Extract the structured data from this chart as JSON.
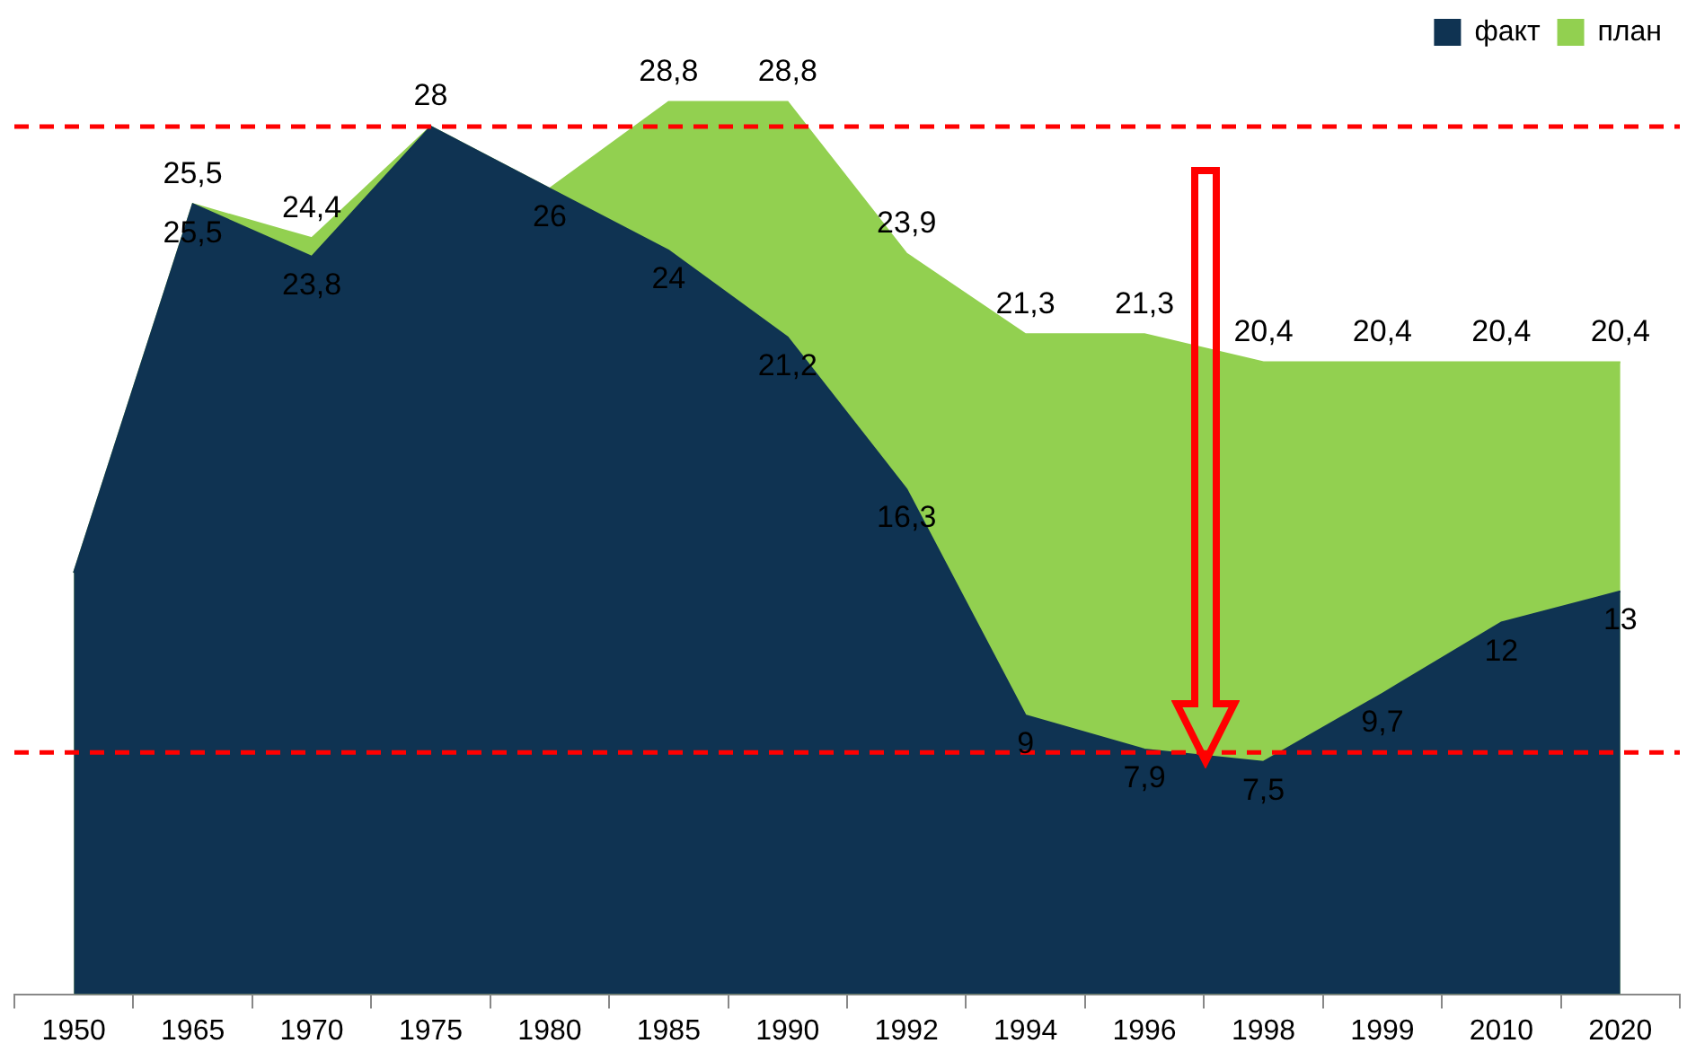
{
  "chart_data": {
    "type": "area",
    "categories": [
      "1950",
      "1965",
      "1970",
      "1975",
      "1980",
      "1985",
      "1990",
      "1992",
      "1994",
      "1996",
      "1998",
      "1999",
      "2010",
      "2020"
    ],
    "series": [
      {
        "name": "план",
        "color": "#92d050",
        "values": [
          13.6,
          25.5,
          24.4,
          28,
          26,
          28.8,
          28.8,
          23.9,
          21.3,
          21.3,
          20.4,
          20.4,
          20.4,
          20.4
        ],
        "value_labels": [
          null,
          "25,5",
          "24,4",
          "28",
          null,
          "28,8",
          "28,8",
          "23,9",
          "21,3",
          "21,3",
          "20,4",
          "20,4",
          "20,4",
          "20,4"
        ]
      },
      {
        "name": "факт",
        "color": "#0f3352",
        "values": [
          13.6,
          25.5,
          23.8,
          28,
          26,
          24,
          21.2,
          16.3,
          9,
          7.9,
          7.5,
          9.7,
          12,
          13
        ],
        "value_labels": [
          null,
          "25,5",
          "23,8",
          null,
          "26",
          "24",
          "21,2",
          "16,3",
          "9",
          "7,9",
          "7,5",
          "9,7",
          "12",
          "13"
        ]
      }
    ],
    "tick_labels": "x",
    "grid": false,
    "legend": "top right",
    "ref_lines": [
      {
        "axis": "y",
        "value": 28,
        "color": "#ff0000",
        "line_style": "dashed"
      },
      {
        "axis": "y",
        "value": 7.8,
        "color": "#ff0000",
        "line_style": "dashed"
      }
    ]
  }
}
